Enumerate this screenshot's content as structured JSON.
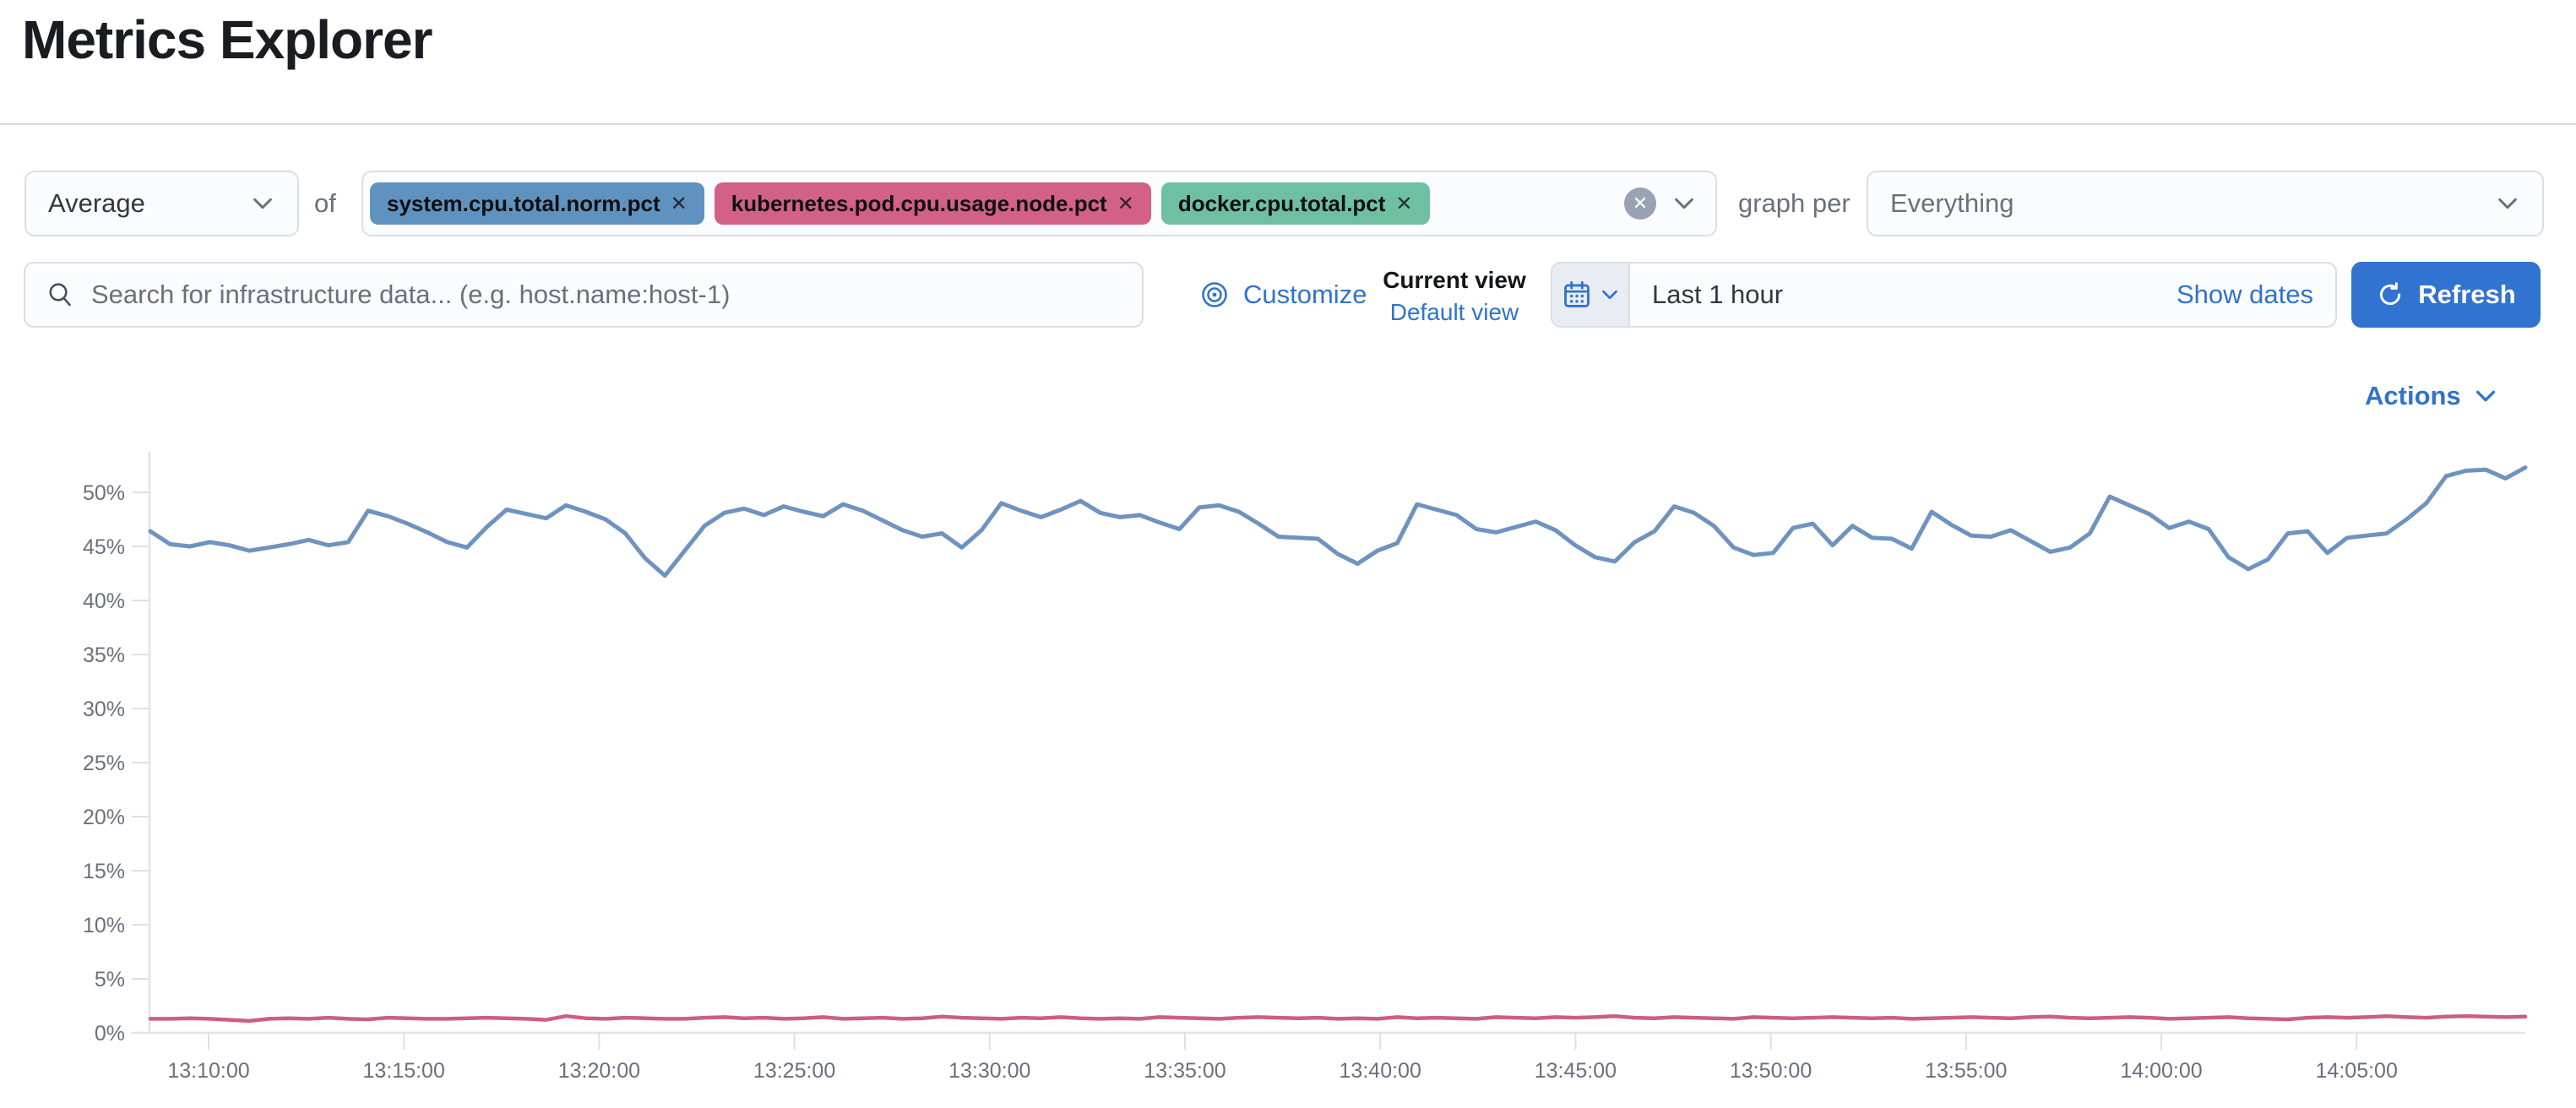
{
  "page_title": "Metrics Explorer",
  "toolbar": {
    "aggregation": {
      "value": "Average"
    },
    "of_label": "of",
    "metrics_field": {
      "remove_symbol": "✕",
      "badges": [
        {
          "label": "system.cpu.total.norm.pct",
          "color": "#6092C0"
        },
        {
          "label": "kubernetes.pod.cpu.usage.node.pct",
          "color": "#D36086"
        },
        {
          "label": "docker.cpu.total.pct",
          "color": "#6FBFA3"
        }
      ]
    },
    "graph_per_label": "graph per",
    "group_by": {
      "value": "Everything"
    }
  },
  "search": {
    "placeholder": "Search for infrastructure data... (e.g. host.name:host-1)"
  },
  "view_controls": {
    "customize_label": "Customize",
    "current_view_label": "Current view",
    "selected_view": "Default view"
  },
  "time_picker": {
    "value": "Last 1 hour",
    "show_dates_label": "Show dates",
    "refresh_label": "Refresh"
  },
  "chart_header": {
    "actions_label": "Actions"
  },
  "colors": {
    "link_blue": "#2F73CC",
    "primary_button": "#3173D0",
    "axis_line": "#E0E4EB",
    "tick_text": "#69707D"
  },
  "chart_data": {
    "type": "line",
    "title": "",
    "xlabel": "",
    "ylabel": "",
    "ylim": [
      0,
      55
    ],
    "grid": false,
    "legend": "none",
    "y_ticks": [
      "0%",
      "5%",
      "10%",
      "15%",
      "20%",
      "25%",
      "30%",
      "35%",
      "40%",
      "45%",
      "50%"
    ],
    "x_ticks": [
      "13:10:00",
      "13:15:00",
      "13:20:00",
      "13:25:00",
      "13:30:00",
      "13:35:00",
      "13:40:00",
      "13:45:00",
      "13:50:00",
      "13:55:00",
      "14:00:00",
      "14:05:00"
    ],
    "x_start": "13:08:30",
    "x_end": "14:08:30",
    "interval_seconds": 30,
    "unit": "%",
    "series": [
      {
        "name": "avg of system.cpu.total.norm.pct",
        "color": "#6E93BF",
        "values": [
          46.4,
          45.2,
          45.0,
          45.4,
          45.1,
          44.6,
          44.9,
          45.2,
          45.6,
          45.1,
          45.4,
          48.3,
          47.8,
          47.1,
          46.3,
          45.4,
          44.9,
          46.8,
          48.4,
          48.0,
          47.6,
          48.8,
          48.2,
          47.5,
          46.2,
          43.9,
          42.3,
          44.6,
          46.9,
          48.1,
          48.5,
          47.9,
          48.7,
          48.2,
          47.8,
          48.9,
          48.3,
          47.4,
          46.5,
          45.9,
          46.2,
          44.9,
          46.5,
          49.0,
          48.3,
          47.7,
          48.4,
          49.2,
          48.1,
          47.7,
          47.9,
          47.2,
          46.6,
          48.6,
          48.8,
          48.2,
          47.1,
          45.9,
          45.8,
          45.7,
          44.3,
          43.4,
          44.6,
          45.3,
          48.9,
          48.4,
          47.9,
          46.6,
          46.3,
          46.8,
          47.3,
          46.5,
          45.1,
          44.0,
          43.6,
          45.4,
          46.4,
          48.7,
          48.1,
          46.9,
          44.9,
          44.2,
          44.4,
          46.7,
          47.1,
          45.1,
          46.9,
          45.8,
          45.7,
          44.8,
          48.2,
          47.0,
          46.0,
          45.9,
          46.5,
          45.5,
          44.5,
          44.9,
          46.2,
          49.6,
          48.8,
          48.0,
          46.7,
          47.3,
          46.6,
          44.0,
          42.9,
          43.8,
          46.2,
          46.4,
          44.4,
          45.8,
          46.0,
          46.2,
          47.5,
          49.0,
          51.5,
          52.0,
          52.1,
          51.3,
          52.3
        ]
      },
      {
        "name": "avg of kubernetes.pod.cpu.usage.node.pct",
        "color": "#CC5E82",
        "values": [
          1.3,
          1.3,
          1.35,
          1.3,
          1.2,
          1.1,
          1.3,
          1.35,
          1.3,
          1.4,
          1.3,
          1.25,
          1.4,
          1.35,
          1.3,
          1.3,
          1.35,
          1.4,
          1.35,
          1.3,
          1.2,
          1.55,
          1.35,
          1.3,
          1.4,
          1.35,
          1.3,
          1.3,
          1.4,
          1.45,
          1.35,
          1.4,
          1.3,
          1.35,
          1.45,
          1.3,
          1.35,
          1.4,
          1.3,
          1.35,
          1.5,
          1.4,
          1.35,
          1.3,
          1.4,
          1.35,
          1.45,
          1.35,
          1.3,
          1.35,
          1.3,
          1.45,
          1.4,
          1.35,
          1.3,
          1.4,
          1.45,
          1.4,
          1.35,
          1.4,
          1.3,
          1.35,
          1.3,
          1.45,
          1.35,
          1.4,
          1.35,
          1.3,
          1.45,
          1.4,
          1.35,
          1.45,
          1.4,
          1.45,
          1.55,
          1.4,
          1.35,
          1.45,
          1.4,
          1.35,
          1.3,
          1.45,
          1.4,
          1.35,
          1.4,
          1.45,
          1.4,
          1.35,
          1.4,
          1.3,
          1.35,
          1.4,
          1.45,
          1.4,
          1.35,
          1.45,
          1.5,
          1.4,
          1.35,
          1.4,
          1.45,
          1.4,
          1.3,
          1.35,
          1.4,
          1.45,
          1.35,
          1.3,
          1.25,
          1.4,
          1.45,
          1.4,
          1.45,
          1.55,
          1.45,
          1.4,
          1.5,
          1.55,
          1.5,
          1.45,
          1.5
        ]
      }
    ]
  }
}
